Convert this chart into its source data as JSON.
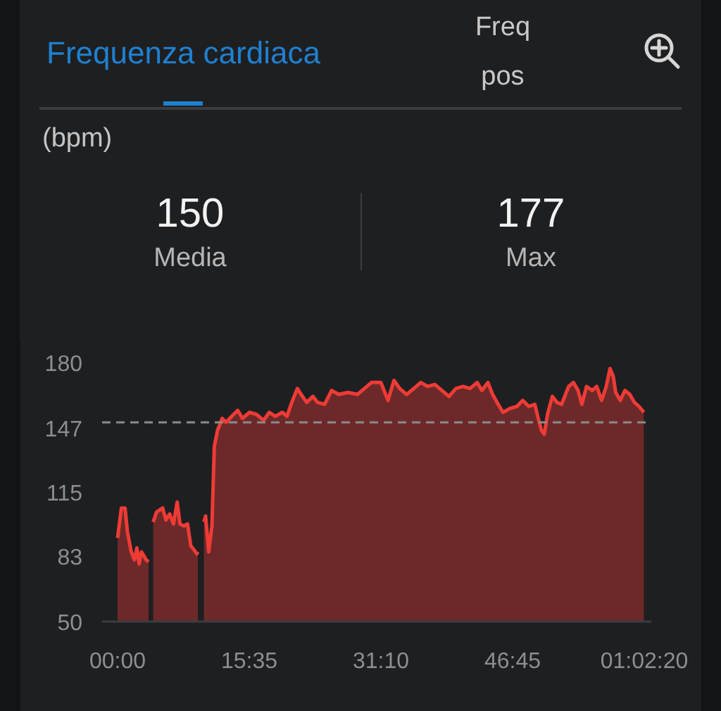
{
  "chart_data": {
    "type": "area",
    "title": "Frequenza cardiaca",
    "annotations": [
      "Freq\npos",
      "(bpm)",
      "150",
      "Media",
      "177",
      "Max"
    ],
    "x": [
      0,
      27,
      53,
      70,
      97,
      120,
      137,
      153,
      170,
      187,
      203,
      220,
      237,
      253,
      277,
      320,
      343,
      370,
      397,
      423,
      443,
      470,
      497,
      520,
      543,
      563,
      570,
      590,
      613,
      625,
      647,
      670,
      687,
      710,
      743,
      770,
      810,
      853,
      887,
      937,
      987,
      1037,
      1077,
      1120,
      1170,
      1203,
      1237,
      1277,
      1303,
      1343,
      1387,
      1420,
      1470,
      1520,
      1570,
      1637,
      1703,
      1753,
      1803,
      1870,
      1920,
      1963,
      2003,
      2053,
      2103,
      2153,
      2203,
      2253,
      2303,
      2353,
      2403,
      2453,
      2503,
      2553,
      2587,
      2630,
      2663,
      2703,
      2737,
      2787,
      2837,
      2877,
      2920,
      2963,
      2987,
      3010,
      3030,
      3053,
      3087,
      3120,
      3153,
      3203,
      3237,
      3270,
      3297,
      3330,
      3370,
      3403,
      3437,
      3470,
      3497,
      3520,
      3537,
      3570,
      3603,
      3637,
      3670,
      3703,
      3737
    ],
    "series": [
      {
        "color": "#ee3b36",
        "values": [
          92,
          107,
          107,
          95,
          85,
          81,
          87,
          79,
          85,
          83,
          81,
          80,
          null,
          100,
          105,
          107,
          101,
          104,
          99,
          110,
          99,
          98,
          99,
          88,
          86,
          84,
          85,
          null,
          100,
          103,
          85,
          98,
          138,
          146,
          152,
          150,
          153,
          156,
          152,
          155,
          154,
          151,
          155,
          153,
          155,
          153,
          160,
          167,
          164,
          160,
          163,
          160,
          159,
          166,
          164,
          165,
          164,
          167,
          170,
          170,
          161,
          171,
          167,
          164,
          167,
          170,
          168,
          169,
          166,
          163,
          167,
          168,
          167,
          170,
          166,
          170,
          164,
          159,
          155,
          157,
          158,
          161,
          158,
          159,
          152,
          146,
          144,
          154,
          163,
          160,
          159,
          168,
          170,
          166,
          159,
          168,
          166,
          168,
          161,
          168,
          177,
          173,
          165,
          161,
          166,
          164,
          160,
          158,
          155
        ]
      }
    ],
    "xlim": [
      -110,
      3790
    ],
    "xticks": [
      {
        "value": 0,
        "label": "00:00"
      },
      {
        "value": 935,
        "label": "15:35"
      },
      {
        "value": 1870,
        "label": "31:10"
      },
      {
        "value": 2805,
        "label": "46:45"
      },
      {
        "value": 3740,
        "label": "01:02:20"
      }
    ],
    "ylim": [
      50,
      180
    ],
    "yticks": [
      50,
      83,
      115,
      147,
      180
    ],
    "ref_lines": [
      {
        "axis": "y",
        "value": 150,
        "color": "#8c8c8c",
        "line_style": "dashed"
      }
    ]
  }
}
